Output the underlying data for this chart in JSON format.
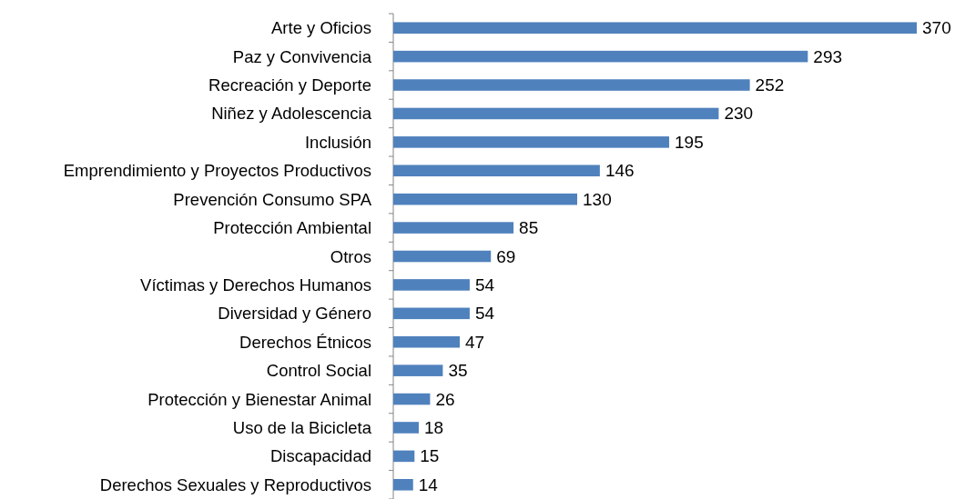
{
  "chart_data": {
    "type": "bar",
    "orientation": "horizontal",
    "data_labels": true,
    "color": "#4f81bd",
    "categories": [
      "Arte y Oficios",
      "Paz y Convivencia",
      "Recreación y Deporte",
      "Niñez y Adolescencia",
      "Inclusión",
      "Emprendimiento y Proyectos Productivos",
      "Prevención Consumo SPA",
      "Protección Ambiental",
      "Otros",
      "Víctimas y Derechos Humanos",
      "Diversidad y Género",
      "Derechos Étnicos",
      "Control Social",
      "Protección y Bienestar Animal",
      "Uso de la Bicicleta",
      "Discapacidad",
      "Derechos Sexuales y Reproductivos"
    ],
    "values": [
      370,
      293,
      252,
      230,
      195,
      146,
      130,
      85,
      69,
      54,
      54,
      47,
      35,
      26,
      18,
      15,
      14
    ]
  }
}
